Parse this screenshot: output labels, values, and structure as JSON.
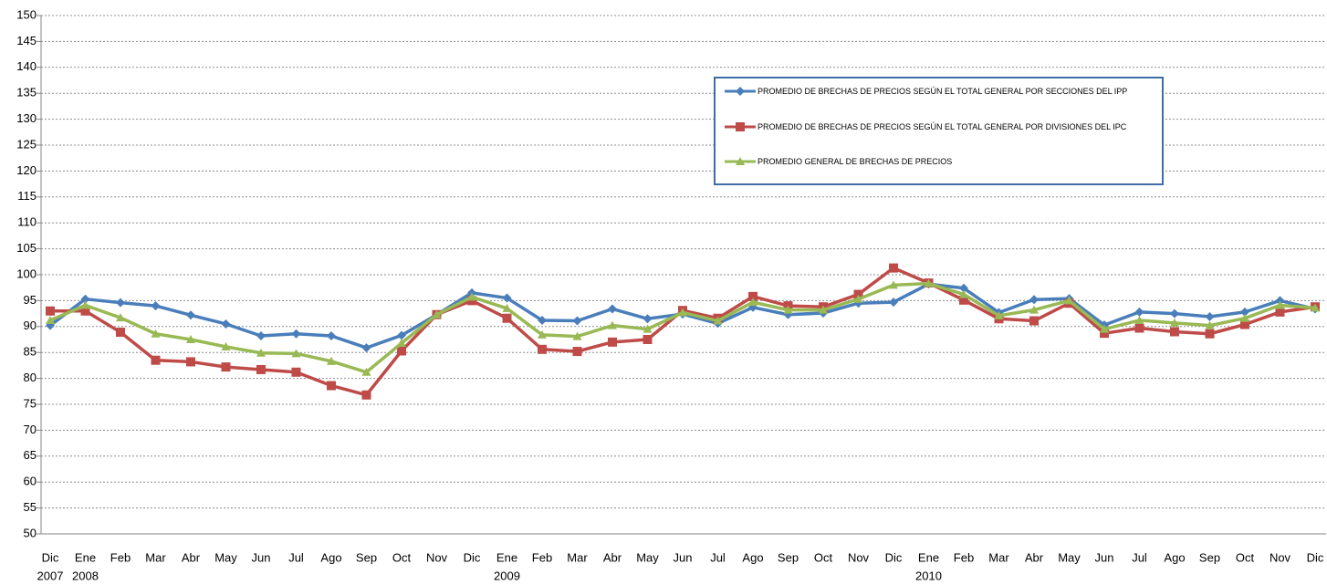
{
  "chart_data": {
    "type": "line",
    "categories": [
      "Dic",
      "Ene",
      "Feb",
      "Mar",
      "Abr",
      "May",
      "Jun",
      "Jul",
      "Ago",
      "Sep",
      "Oct",
      "Nov",
      "Dic",
      "Ene",
      "Feb",
      "Mar",
      "Abr",
      "May",
      "Jun",
      "Jul",
      "Ago",
      "Sep",
      "Oct",
      "Nov",
      "Dic",
      "Ene",
      "Feb",
      "Mar",
      "Abr",
      "May",
      "Jun",
      "Jul",
      "Ago",
      "Sep",
      "Oct",
      "Nov",
      "Dic"
    ],
    "year_labels": [
      "2007",
      "2008",
      null,
      null,
      null,
      null,
      null,
      null,
      null,
      null,
      null,
      null,
      null,
      "2009",
      null,
      null,
      null,
      null,
      null,
      null,
      null,
      null,
      null,
      null,
      null,
      "2010",
      null,
      null,
      null,
      null,
      null,
      null,
      null,
      null,
      null,
      null,
      null
    ],
    "series": [
      {
        "name": "PROMEDIO DE BRECHAS DE PRECIOS SEGÚN EL TOTAL GENERAL POR SECCIONES DEL IPP",
        "color": "#4a7ebb",
        "marker": "diamond",
        "values": [
          90.2,
          95.3,
          94.6,
          94.0,
          92.2,
          90.5,
          88.2,
          88.6,
          88.2,
          85.9,
          88.3,
          92.3,
          96.5,
          95.5,
          91.2,
          91.1,
          93.4,
          91.5,
          92.4,
          90.6,
          93.7,
          92.3,
          92.6,
          94.5,
          94.7,
          98.2,
          97.4,
          92.7,
          95.2,
          95.4,
          90.3,
          92.8,
          92.5,
          91.9,
          92.8,
          95.0,
          93.4
        ]
      },
      {
        "name": "PROMEDIO DE BRECHAS DE PRECIOS SEGÚN EL TOTAL GENERAL POR DIVISIONES DEL IPC",
        "color": "#be4b48",
        "marker": "square",
        "values": [
          93.0,
          93.0,
          88.9,
          83.5,
          83.2,
          82.2,
          81.7,
          81.2,
          78.6,
          76.8,
          85.3,
          92.3,
          95.0,
          91.6,
          85.6,
          85.2,
          87.0,
          87.5,
          93.1,
          91.6,
          95.8,
          94.0,
          93.8,
          96.2,
          101.3,
          98.4,
          95.1,
          91.5,
          91.1,
          94.5,
          88.7,
          89.7,
          89.0,
          88.6,
          90.4,
          92.8,
          93.8
        ]
      },
      {
        "name": "PROMEDIO GENERAL DE BRECHAS DE PRECIOS",
        "color": "#98b954",
        "marker": "triangle",
        "values": [
          91.2,
          94.1,
          91.7,
          88.6,
          87.5,
          86.1,
          84.9,
          84.8,
          83.3,
          81.2,
          86.8,
          92.3,
          95.7,
          93.5,
          88.4,
          88.1,
          90.2,
          89.5,
          92.7,
          91.1,
          94.7,
          93.2,
          93.2,
          95.3,
          98.0,
          98.3,
          96.2,
          92.1,
          93.2,
          95.0,
          89.5,
          91.2,
          90.7,
          90.2,
          91.6,
          94.1,
          93.6
        ]
      }
    ],
    "ylim": [
      50,
      150
    ],
    "yticks": [
      50,
      55,
      60,
      65,
      70,
      75,
      80,
      85,
      90,
      95,
      100,
      105,
      110,
      115,
      120,
      125,
      130,
      135,
      140,
      145,
      150
    ],
    "grid": true,
    "legend": "top-right"
  }
}
